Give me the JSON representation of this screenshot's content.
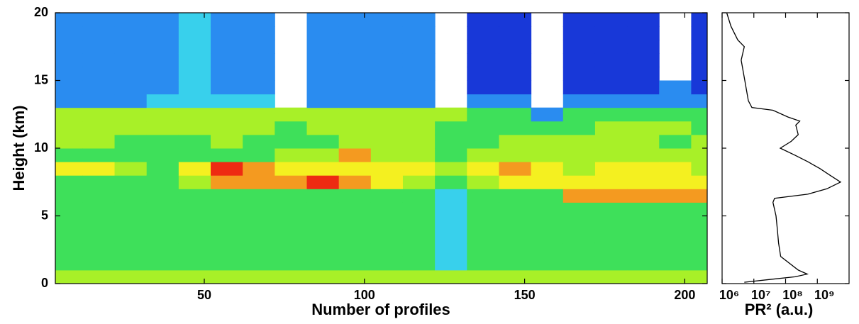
{
  "chart_data": [
    {
      "type": "heatmap",
      "xlabel": "Number of profiles",
      "ylabel": "Height (km)",
      "xlim": [
        3.5,
        207
      ],
      "xticks": [
        50,
        100,
        150,
        200
      ],
      "ylim": [
        0,
        20
      ],
      "yticks": [
        0,
        5,
        10,
        15,
        20
      ],
      "xbins": [
        3.5,
        12,
        22,
        32,
        42,
        52,
        62,
        72,
        82,
        92,
        102,
        112,
        122,
        132,
        142,
        152,
        162,
        172,
        182,
        192,
        202,
        207
      ],
      "ybins": [
        0,
        1,
        2,
        3,
        4,
        5,
        6,
        7,
        8,
        9,
        10,
        11,
        12,
        13,
        14,
        15,
        16,
        17,
        18,
        19,
        20
      ],
      "colorscale": [
        "#1838d8",
        "#2a8cf0",
        "#38d0ec",
        "#3ee05a",
        "#a8f028",
        "#f4f020",
        "#f49a20",
        "#ee2a12"
      ],
      "z": [
        [
          5,
          4,
          4,
          4,
          4,
          4,
          4,
          4,
          6,
          4,
          5,
          5,
          5,
          2,
          2,
          2,
          2,
          2,
          2,
          2
        ],
        [
          5,
          4,
          4,
          4,
          4,
          4,
          4,
          4,
          6,
          4,
          5,
          5,
          5,
          2,
          2,
          2,
          2,
          2,
          2,
          2
        ],
        [
          5,
          4,
          4,
          4,
          4,
          4,
          4,
          4,
          5,
          4,
          4,
          5,
          5,
          2,
          2,
          2,
          2,
          2,
          2,
          2
        ],
        [
          5,
          4,
          4,
          4,
          4,
          4,
          4,
          4,
          4,
          4,
          4,
          5,
          5,
          3,
          2,
          2,
          2,
          2,
          2,
          2
        ],
        [
          5,
          4,
          4,
          4,
          4,
          4,
          4,
          5,
          6,
          4,
          4,
          5,
          5,
          3,
          3,
          3,
          3,
          3,
          3,
          3
        ],
        [
          5,
          4,
          4,
          4,
          4,
          4,
          4,
          7,
          8,
          4,
          5,
          5,
          5,
          3,
          2,
          2,
          2,
          2,
          2,
          2
        ],
        [
          5,
          4,
          4,
          4,
          4,
          4,
          4,
          7,
          7,
          4,
          4,
          5,
          5,
          3,
          2,
          2,
          2,
          2,
          2,
          2
        ],
        [
          5,
          4,
          4,
          4,
          4,
          4,
          4,
          7,
          6,
          5,
          4,
          4,
          5,
          null,
          null,
          null,
          null,
          null,
          null,
          null
        ],
        [
          5,
          4,
          4,
          4,
          4,
          4,
          4,
          8,
          6,
          5,
          4,
          5,
          5,
          2,
          2,
          2,
          2,
          2,
          2,
          2
        ],
        [
          5,
          4,
          4,
          4,
          4,
          4,
          4,
          7,
          6,
          7,
          5,
          5,
          5,
          2,
          2,
          2,
          2,
          2,
          2,
          2
        ],
        [
          5,
          4,
          4,
          4,
          4,
          4,
          4,
          6,
          6,
          5,
          5,
          5,
          5,
          2,
          2,
          2,
          2,
          2,
          2,
          2
        ],
        [
          5,
          4,
          4,
          4,
          4,
          4,
          4,
          5,
          6,
          5,
          5,
          5,
          5,
          2,
          2,
          2,
          2,
          2,
          2,
          2
        ],
        [
          5,
          3,
          3,
          3,
          3,
          3,
          3,
          4,
          5,
          4,
          4,
          4,
          5,
          null,
          null,
          null,
          null,
          null,
          null,
          null
        ],
        [
          5,
          4,
          4,
          4,
          4,
          4,
          4,
          5,
          6,
          5,
          4,
          4,
          4,
          2,
          1,
          1,
          1,
          1,
          1,
          1
        ],
        [
          5,
          4,
          4,
          4,
          4,
          4,
          4,
          6,
          7,
          5,
          5,
          4,
          4,
          2,
          1,
          1,
          1,
          1,
          1,
          1
        ],
        [
          5,
          4,
          4,
          4,
          4,
          4,
          4,
          6,
          6,
          5,
          5,
          4,
          2,
          null,
          null,
          null,
          null,
          null,
          null,
          null
        ],
        [
          5,
          4,
          4,
          4,
          4,
          4,
          7,
          6,
          5,
          5,
          5,
          4,
          4,
          2,
          1,
          1,
          1,
          1,
          1,
          1
        ],
        [
          5,
          4,
          4,
          4,
          4,
          4,
          7,
          6,
          6,
          5,
          5,
          5,
          4,
          2,
          1,
          1,
          1,
          1,
          1,
          1
        ],
        [
          5,
          4,
          4,
          4,
          4,
          4,
          7,
          6,
          6,
          5,
          5,
          5,
          4,
          2,
          1,
          1,
          1,
          1,
          1,
          1
        ],
        [
          5,
          4,
          4,
          4,
          4,
          4,
          7,
          6,
          6,
          5,
          4,
          5,
          4,
          2,
          2,
          null,
          null,
          null,
          null,
          null
        ],
        [
          5,
          4,
          4,
          4,
          4,
          4,
          7,
          6,
          5,
          5,
          5,
          4,
          4,
          2,
          1,
          1,
          1,
          1,
          1,
          1
        ]
      ]
    },
    {
      "type": "profile",
      "xlabel": "PR² (a.u.)",
      "xscale": "log",
      "color": "#000000",
      "xlim": [
        1000000,
        10000000000
      ],
      "xticks": [
        {
          "value": 1000000,
          "label": "10⁶"
        },
        {
          "value": 10000000,
          "label": "10⁷"
        },
        {
          "value": 100000000,
          "label": "10⁸"
        },
        {
          "value": 1000000000,
          "label": "10⁹"
        }
      ],
      "ylim": [
        0,
        20
      ],
      "yticks": [
        0,
        5,
        10,
        15,
        20
      ],
      "heights": [
        0.1,
        0.3,
        0.5,
        0.7,
        1,
        2,
        3,
        4,
        5,
        6,
        6.3,
        6.6,
        7,
        7.5,
        8,
        8.5,
        9,
        9.5,
        10,
        10.5,
        11,
        11.7,
        12,
        12.3,
        12.8,
        13,
        13.5,
        15,
        16.5,
        17.5,
        18,
        19,
        20
      ],
      "values": [
        5000000,
        30000000,
        200000000,
        480000000,
        250000000,
        70000000,
        60000000,
        55000000,
        50000000,
        40000000,
        45000000,
        500000000,
        2000000000,
        5400000000,
        2500000000,
        1200000000,
        500000000,
        190000000,
        68000000,
        150000000,
        250000000,
        210000000,
        280000000,
        120000000,
        40000000,
        8700000,
        6700000,
        5200000,
        4000000,
        5000000,
        3100000,
        1900000,
        1400000
      ]
    }
  ]
}
